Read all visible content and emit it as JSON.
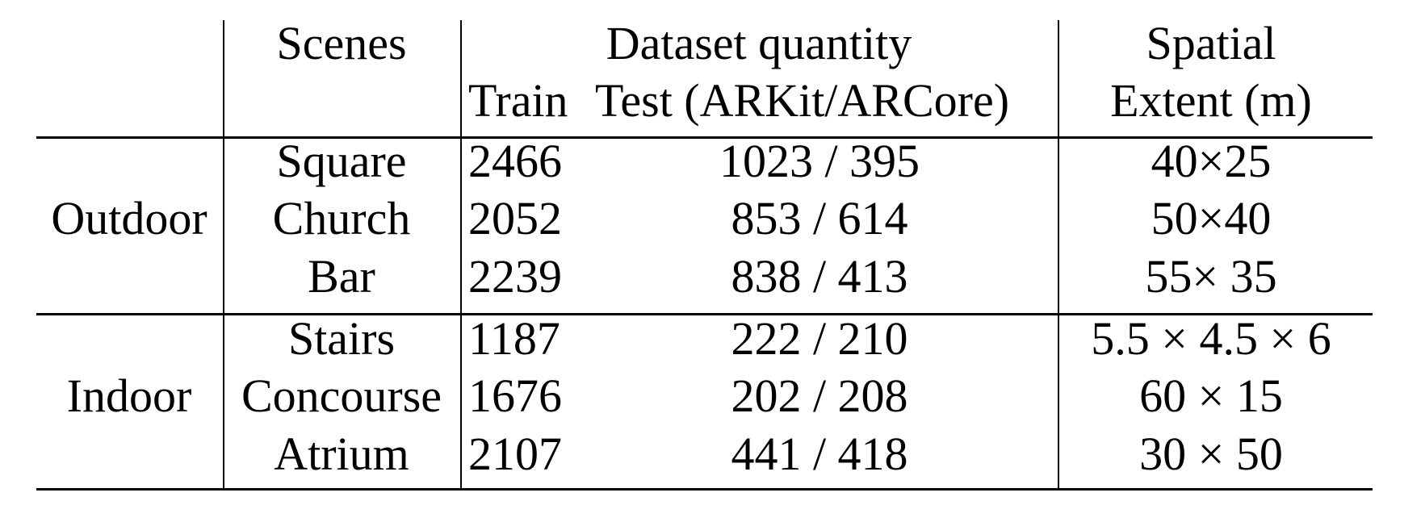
{
  "header": {
    "scenes": "Scenes",
    "dataset_quantity": "Dataset quantity",
    "train": "Train",
    "test": "Test (ARKit/ARCore)",
    "spatial_line1": "Spatial",
    "spatial_line2": "Extent (m)"
  },
  "groups": [
    {
      "label": "Outdoor",
      "rows": [
        {
          "scene": "Square",
          "train": "2466",
          "test": "1023 / 395",
          "extent": "40×25"
        },
        {
          "scene": "Church",
          "train": "2052",
          "test": "853 / 614",
          "extent": "50×40"
        },
        {
          "scene": "Bar",
          "train": "2239",
          "test": "838 / 413",
          "extent": "55× 35"
        }
      ]
    },
    {
      "label": "Indoor",
      "rows": [
        {
          "scene": "Stairs",
          "train": "1187",
          "test": "222 / 210",
          "extent": "5.5 × 4.5 × 6"
        },
        {
          "scene": "Concourse",
          "train": "1676",
          "test": "202 / 208",
          "extent": "60 × 15"
        },
        {
          "scene": "Atrium",
          "train": "2107",
          "test": "441 / 418",
          "extent": "30 × 50"
        }
      ]
    }
  ]
}
